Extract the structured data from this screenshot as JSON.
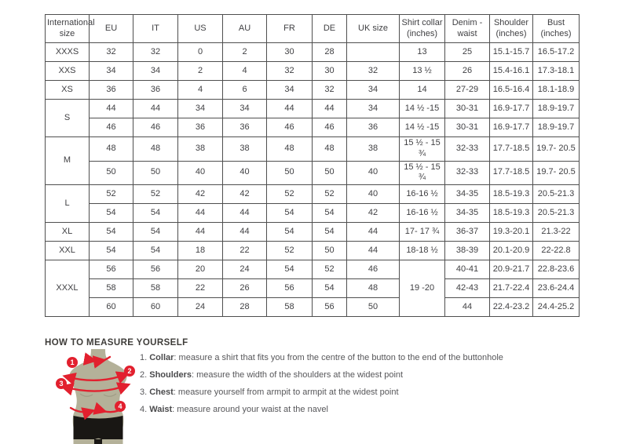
{
  "size_table": {
    "headers": [
      "International size",
      "EU",
      "IT",
      "US",
      "AU",
      "FR",
      "DE",
      "UK size",
      "Shirt collar (inches)",
      "Denim - waist",
      "Shoulder (inches)",
      "Bust (inches)"
    ],
    "rows": [
      [
        {
          "t": "XXXS"
        },
        {
          "t": "32"
        },
        {
          "t": "32"
        },
        {
          "t": "0"
        },
        {
          "t": "2"
        },
        {
          "t": "30"
        },
        {
          "t": "28"
        },
        {
          "t": ""
        },
        {
          "t": "13"
        },
        {
          "t": "25"
        },
        {
          "t": "15.1-15.7"
        },
        {
          "t": "16.5-17.2"
        }
      ],
      [
        {
          "t": "XXS"
        },
        {
          "t": "34"
        },
        {
          "t": "34"
        },
        {
          "t": "2"
        },
        {
          "t": "4"
        },
        {
          "t": "32"
        },
        {
          "t": "30"
        },
        {
          "t": "32"
        },
        {
          "t": "13 ½"
        },
        {
          "t": "26"
        },
        {
          "t": "15.4-16.1"
        },
        {
          "t": "17.3-18.1"
        }
      ],
      [
        {
          "t": "XS"
        },
        {
          "t": "36"
        },
        {
          "t": "36"
        },
        {
          "t": "4"
        },
        {
          "t": "6"
        },
        {
          "t": "34"
        },
        {
          "t": "32"
        },
        {
          "t": "34"
        },
        {
          "t": "14"
        },
        {
          "t": "27-29"
        },
        {
          "t": "16.5-16.4"
        },
        {
          "t": "18.1-18.9"
        }
      ],
      [
        {
          "t": "S",
          "r": 2
        },
        {
          "t": "44"
        },
        {
          "t": "44"
        },
        {
          "t": "34"
        },
        {
          "t": "34"
        },
        {
          "t": "44"
        },
        {
          "t": "44"
        },
        {
          "t": "34"
        },
        {
          "t": "14 ½ -15"
        },
        {
          "t": "30-31"
        },
        {
          "t": "16.9-17.7"
        },
        {
          "t": "18.9-19.7"
        }
      ],
      [
        {
          "t": "46"
        },
        {
          "t": "46"
        },
        {
          "t": "36"
        },
        {
          "t": "36"
        },
        {
          "t": "46"
        },
        {
          "t": "46"
        },
        {
          "t": "36"
        },
        {
          "t": "14 ½ -15"
        },
        {
          "t": "30-31"
        },
        {
          "t": "16.9-17.7"
        },
        {
          "t": "18.9-19.7"
        }
      ],
      [
        {
          "t": "M",
          "r": 2
        },
        {
          "t": "48"
        },
        {
          "t": "48"
        },
        {
          "t": "38"
        },
        {
          "t": "38"
        },
        {
          "t": "48"
        },
        {
          "t": "48"
        },
        {
          "t": "38"
        },
        {
          "t": "15 ½ - 15 ¾"
        },
        {
          "t": "32-33"
        },
        {
          "t": "17.7-18.5"
        },
        {
          "t": "19.7- 20.5"
        }
      ],
      [
        {
          "t": "50"
        },
        {
          "t": "50"
        },
        {
          "t": "40"
        },
        {
          "t": "40"
        },
        {
          "t": "50"
        },
        {
          "t": "50"
        },
        {
          "t": "40"
        },
        {
          "t": "15 ½ - 15 ¾"
        },
        {
          "t": "32-33"
        },
        {
          "t": "17.7-18.5"
        },
        {
          "t": "19.7- 20.5"
        }
      ],
      [
        {
          "t": "L",
          "r": 2
        },
        {
          "t": "52"
        },
        {
          "t": "52"
        },
        {
          "t": "42"
        },
        {
          "t": "42"
        },
        {
          "t": "52"
        },
        {
          "t": "52"
        },
        {
          "t": "40"
        },
        {
          "t": "16-16 ½"
        },
        {
          "t": "34-35"
        },
        {
          "t": "18.5-19.3"
        },
        {
          "t": "20.5-21.3"
        }
      ],
      [
        {
          "t": "54"
        },
        {
          "t": "54"
        },
        {
          "t": "44"
        },
        {
          "t": "44"
        },
        {
          "t": "54"
        },
        {
          "t": "54"
        },
        {
          "t": "42"
        },
        {
          "t": "16-16 ½"
        },
        {
          "t": "34-35"
        },
        {
          "t": "18.5-19.3"
        },
        {
          "t": "20.5-21.3"
        }
      ],
      [
        {
          "t": "XL"
        },
        {
          "t": "54"
        },
        {
          "t": "54"
        },
        {
          "t": "44"
        },
        {
          "t": "44"
        },
        {
          "t": "54"
        },
        {
          "t": "54"
        },
        {
          "t": "44"
        },
        {
          "t": "17- 17 ¾"
        },
        {
          "t": "36-37"
        },
        {
          "t": "19.3-20.1"
        },
        {
          "t": "21.3-22"
        }
      ],
      [
        {
          "t": "XXL"
        },
        {
          "t": "54"
        },
        {
          "t": "54"
        },
        {
          "t": "18"
        },
        {
          "t": "22"
        },
        {
          "t": "52"
        },
        {
          "t": "50"
        },
        {
          "t": "44"
        },
        {
          "t": "18-18 ½"
        },
        {
          "t": "38-39"
        },
        {
          "t": "20.1-20.9"
        },
        {
          "t": "22-22.8"
        }
      ],
      [
        {
          "t": "XXXL",
          "r": 3
        },
        {
          "t": "56"
        },
        {
          "t": "56"
        },
        {
          "t": "20"
        },
        {
          "t": "24"
        },
        {
          "t": "54"
        },
        {
          "t": "52"
        },
        {
          "t": "46"
        },
        {
          "t": "19 -20",
          "r": 3
        },
        {
          "t": "40-41"
        },
        {
          "t": "20.9-21.7"
        },
        {
          "t": "22.8-23.6"
        }
      ],
      [
        {
          "t": "58"
        },
        {
          "t": "58"
        },
        {
          "t": "22"
        },
        {
          "t": "26"
        },
        {
          "t": "56"
        },
        {
          "t": "54"
        },
        {
          "t": "48"
        },
        {
          "t": "42-43"
        },
        {
          "t": "21.7-22.4"
        },
        {
          "t": "23.6-24.4"
        }
      ],
      [
        {
          "t": "60"
        },
        {
          "t": "60"
        },
        {
          "t": "24"
        },
        {
          "t": "28"
        },
        {
          "t": "58"
        },
        {
          "t": "56"
        },
        {
          "t": "50"
        },
        {
          "t": "44"
        },
        {
          "t": "22.4-23.2"
        },
        {
          "t": "24.4-25.2"
        }
      ]
    ]
  },
  "measure": {
    "heading": "HOW TO MEASURE YOURSELF",
    "steps": [
      {
        "num": "1. ",
        "label": "Collar",
        "text": ": measure a shirt that fits you from the centre of the button to the end of the buttonhole"
      },
      {
        "num": "2. ",
        "label": "Shoulders",
        "text": ": measure the width of the shoulders at the widest point"
      },
      {
        "num": "3. ",
        "label": "Chest",
        "text": ": measure yourself from armpit to armpit at the widest point"
      },
      {
        "num": "4. ",
        "label": "Waist",
        "text": ": measure around your waist at the navel"
      }
    ]
  },
  "figure": {
    "badges": [
      "1",
      "2",
      "3",
      "4"
    ],
    "colors": {
      "accent_red": "#e2202e",
      "mannequin": "#b4b199",
      "shorts": "#191714",
      "table_border": "#4f4f4f"
    }
  }
}
